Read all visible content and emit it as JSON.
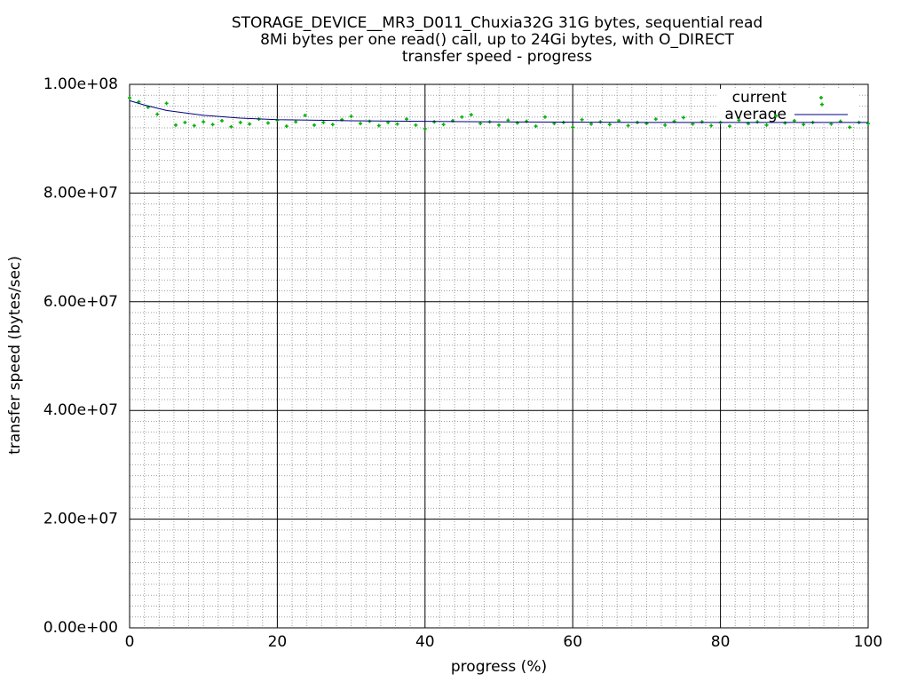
{
  "chart_data": {
    "type": "scatter",
    "title": [
      "STORAGE_DEVICE__MR3_D011_Chuxia32G 31G bytes, sequential read",
      "8Mi bytes per one read() call, up to 24Gi bytes, with O_DIRECT",
      "transfer speed - progress"
    ],
    "x_label": "progress (%)",
    "y_label": "transfer speed (bytes/sec)",
    "xlim": [
      0,
      100
    ],
    "xticks": [
      0,
      20,
      40,
      60,
      80,
      100
    ],
    "ylim": [
      0,
      100000000
    ],
    "yticks": [
      {
        "value": 0,
        "label": "0.00e+00"
      },
      {
        "value": 20000000,
        "label": "2.00e+07"
      },
      {
        "value": 40000000,
        "label": "4.00e+07"
      },
      {
        "value": 60000000,
        "label": "6.00e+07"
      },
      {
        "value": 80000000,
        "label": "8.00e+07"
      },
      {
        "value": 100000000,
        "label": "1.00e+08"
      }
    ],
    "grid": true,
    "xminor": 10,
    "yminor": 10,
    "legend": "top-right",
    "series": [
      {
        "name": "current",
        "color": "#00b000",
        "style": "points",
        "x": [
          0,
          1.25,
          2.5,
          3.75,
          5,
          6.25,
          7.5,
          8.75,
          10,
          11.25,
          12.5,
          13.75,
          15,
          16.25,
          17.5,
          18.75,
          20,
          21.25,
          22.5,
          23.75,
          25,
          26.25,
          27.5,
          28.75,
          30,
          31.25,
          32.5,
          33.75,
          35,
          36.25,
          37.5,
          38.75,
          40,
          41.25,
          42.5,
          43.75,
          45,
          46.25,
          47.5,
          48.75,
          50,
          51.25,
          52.5,
          53.75,
          55,
          56.25,
          57.5,
          58.75,
          60,
          61.25,
          62.5,
          63.75,
          65,
          66.25,
          67.5,
          68.75,
          70,
          71.25,
          72.5,
          73.75,
          75,
          76.25,
          77.5,
          78.75,
          80,
          81.25,
          82.5,
          83.75,
          85,
          86.25,
          87.5,
          88.75,
          90,
          91.25,
          92.5,
          93.75,
          95,
          96.25,
          97.5,
          98.75,
          100
        ],
        "values": [
          97500000,
          96800000,
          95800000,
          94500000,
          96500000,
          92500000,
          93000000,
          92400000,
          93100000,
          92600000,
          93300000,
          92200000,
          93000000,
          92700000,
          93600000,
          92900000,
          93400000,
          92300000,
          93100000,
          94300000,
          92500000,
          93000000,
          92600000,
          93500000,
          94100000,
          92800000,
          93200000,
          92400000,
          93000000,
          92700000,
          93600000,
          92500000,
          91800000,
          93100000,
          92600000,
          93300000,
          94000000,
          94400000,
          92800000,
          93100000,
          92500000,
          93400000,
          92900000,
          93200000,
          92300000,
          94000000,
          92800000,
          93000000,
          92100000,
          93500000,
          92700000,
          93100000,
          92600000,
          93300000,
          92400000,
          93000000,
          92800000,
          93600000,
          92500000,
          93200000,
          93900000,
          92700000,
          93100000,
          92400000,
          93000000,
          92300000,
          93400000,
          92800000,
          93100000,
          92500000,
          94200000,
          92900000,
          93300000,
          92600000,
          93000000,
          96300000,
          92700000,
          93200000,
          92100000,
          93000000,
          92800000
        ]
      },
      {
        "name": "average",
        "color": "#000080",
        "style": "line",
        "x": [
          0,
          2,
          5,
          10,
          15,
          20,
          30,
          50,
          70,
          100
        ],
        "values": [
          97000000,
          96200000,
          95200000,
          94300000,
          93800000,
          93500000,
          93300000,
          93100000,
          93000000,
          93000000
        ]
      }
    ]
  }
}
